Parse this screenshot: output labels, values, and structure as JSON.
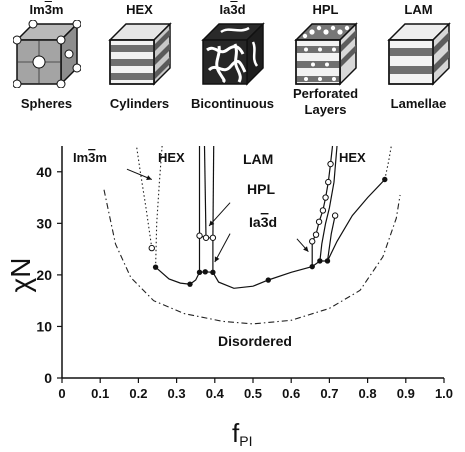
{
  "morphologies": [
    {
      "name": "Im3m",
      "label": "Spheres",
      "icon": "spheres-cube-icon"
    },
    {
      "name": "HEX",
      "label": "Cylinders",
      "icon": "cylinders-cube-icon"
    },
    {
      "name": "Ia3d",
      "label": "Bicontinuous",
      "icon": "bicontinuous-cube-icon"
    },
    {
      "name": "HPL",
      "label": "Perforated Layers",
      "icon": "perforated-layers-cube-icon"
    },
    {
      "name": "LAM",
      "label": "Lamellae",
      "icon": "lamellae-cube-icon"
    }
  ],
  "chart_data": {
    "type": "scatter",
    "xlabel": "f",
    "xlabel_sub": "PI",
    "ylabel": "χN",
    "xlim": [
      0,
      1.0
    ],
    "ylim": [
      0,
      45
    ],
    "xticks": [
      "0",
      "0.1",
      "0.2",
      "0.3",
      "0.4",
      "0.5",
      "0.6",
      "0.7",
      "0.8",
      "0.9",
      "1.0"
    ],
    "yticks": [
      "0",
      "10",
      "20",
      "30",
      "40"
    ],
    "region_labels": [
      {
        "text": "Im3m",
        "x": 0.07,
        "y": 41
      },
      {
        "text": "HEX",
        "x": 0.255,
        "y": 41
      },
      {
        "text": "LAM",
        "x": 0.475,
        "y": 40.5
      },
      {
        "text": "HEX",
        "x": 0.745,
        "y": 41
      },
      {
        "text": "HPL",
        "x": 0.495,
        "y": 34.5
      },
      {
        "text": "Ia3d",
        "x": 0.495,
        "y": 28.5
      },
      {
        "text": "Disordered",
        "x": 0.515,
        "y": 6.5
      }
    ],
    "filled_points": [
      {
        "x": 0.245,
        "y": 21.5
      },
      {
        "x": 0.335,
        "y": 18.2
      },
      {
        "x": 0.36,
        "y": 20.5
      },
      {
        "x": 0.375,
        "y": 20.6
      },
      {
        "x": 0.395,
        "y": 20.5
      },
      {
        "x": 0.54,
        "y": 19.0
      },
      {
        "x": 0.655,
        "y": 21.6
      },
      {
        "x": 0.675,
        "y": 22.7
      },
      {
        "x": 0.695,
        "y": 22.7
      },
      {
        "x": 0.845,
        "y": 38.5
      }
    ],
    "open_points": [
      {
        "x": 0.235,
        "y": 25.2
      },
      {
        "x": 0.36,
        "y": 27.6
      },
      {
        "x": 0.377,
        "y": 27.2
      },
      {
        "x": 0.395,
        "y": 27.2
      },
      {
        "x": 0.655,
        "y": 26.5
      },
      {
        "x": 0.665,
        "y": 27.8
      },
      {
        "x": 0.673,
        "y": 30.3
      },
      {
        "x": 0.683,
        "y": 32.5
      },
      {
        "x": 0.69,
        "y": 35.0
      },
      {
        "x": 0.697,
        "y": 38.0
      },
      {
        "x": 0.703,
        "y": 41.5
      },
      {
        "x": 0.715,
        "y": 31.5
      }
    ],
    "solid_lines": [
      [
        [
          0.245,
          21.5
        ],
        [
          0.28,
          19.2
        ],
        [
          0.31,
          18.4
        ],
        [
          0.335,
          18.2
        ],
        [
          0.35,
          19.0
        ],
        [
          0.36,
          20.5
        ],
        [
          0.375,
          20.6
        ],
        [
          0.395,
          20.5
        ],
        [
          0.41,
          18.6
        ],
        [
          0.45,
          17.4
        ],
        [
          0.5,
          17.8
        ],
        [
          0.54,
          19.0
        ],
        [
          0.6,
          20.5
        ],
        [
          0.655,
          21.6
        ],
        [
          0.675,
          22.7
        ],
        [
          0.695,
          22.7
        ],
        [
          0.72,
          26.5
        ],
        [
          0.76,
          31.5
        ],
        [
          0.8,
          35.0
        ],
        [
          0.845,
          38.5
        ]
      ],
      [
        [
          0.36,
          20.5
        ],
        [
          0.36,
          27.6
        ],
        [
          0.377,
          27.2
        ],
        [
          0.395,
          27.2
        ],
        [
          0.395,
          20.5
        ]
      ],
      [
        [
          0.36,
          27.6
        ],
        [
          0.36,
          45
        ]
      ],
      [
        [
          0.377,
          27.2
        ],
        [
          0.373,
          45
        ]
      ],
      [
        [
          0.395,
          27.2
        ],
        [
          0.397,
          45
        ]
      ],
      [
        [
          0.655,
          21.6
        ],
        [
          0.655,
          26.5
        ],
        [
          0.665,
          27.8
        ],
        [
          0.673,
          30.3
        ],
        [
          0.683,
          32.5
        ],
        [
          0.69,
          35.0
        ],
        [
          0.697,
          38.0
        ],
        [
          0.703,
          41.5
        ],
        [
          0.708,
          45
        ]
      ],
      [
        [
          0.675,
          22.7
        ],
        [
          0.68,
          26.0
        ],
        [
          0.69,
          30.0
        ],
        [
          0.7,
          33.0
        ],
        [
          0.712,
          38.0
        ],
        [
          0.72,
          45
        ]
      ],
      [
        [
          0.695,
          22.7
        ],
        [
          0.705,
          28.0
        ],
        [
          0.715,
          31.5
        ]
      ]
    ],
    "dotted_lines": [
      [
        [
          0.235,
          25.2
        ],
        [
          0.22,
          33.0
        ],
        [
          0.205,
          40.0
        ],
        [
          0.195,
          45
        ]
      ],
      [
        [
          0.245,
          21.5
        ],
        [
          0.248,
          30.0
        ],
        [
          0.255,
          38.0
        ],
        [
          0.262,
          45
        ]
      ],
      [
        [
          0.845,
          38.5
        ],
        [
          0.855,
          42.0
        ],
        [
          0.862,
          45
        ]
      ]
    ],
    "dashdot_lines": [
      [
        [
          0.11,
          36.5
        ],
        [
          0.14,
          26.0
        ],
        [
          0.18,
          19.5
        ],
        [
          0.24,
          15.0
        ],
        [
          0.32,
          12.5
        ],
        [
          0.42,
          11.0
        ],
        [
          0.5,
          10.5
        ],
        [
          0.6,
          11.2
        ],
        [
          0.7,
          13.5
        ],
        [
          0.78,
          17.0
        ],
        [
          0.84,
          23.5
        ],
        [
          0.875,
          31.0
        ],
        [
          0.885,
          35.5
        ]
      ]
    ],
    "arrows": [
      {
        "from": [
          0.17,
          40.5
        ],
        "to": [
          0.235,
          38.5
        ]
      },
      {
        "from": [
          0.44,
          34.0
        ],
        "to": [
          0.385,
          29.5
        ]
      },
      {
        "from": [
          0.44,
          28.0
        ],
        "to": [
          0.4,
          22.5
        ]
      },
      {
        "from": [
          0.615,
          27.0
        ],
        "to": [
          0.645,
          24.5
        ]
      }
    ],
    "grid": false
  }
}
